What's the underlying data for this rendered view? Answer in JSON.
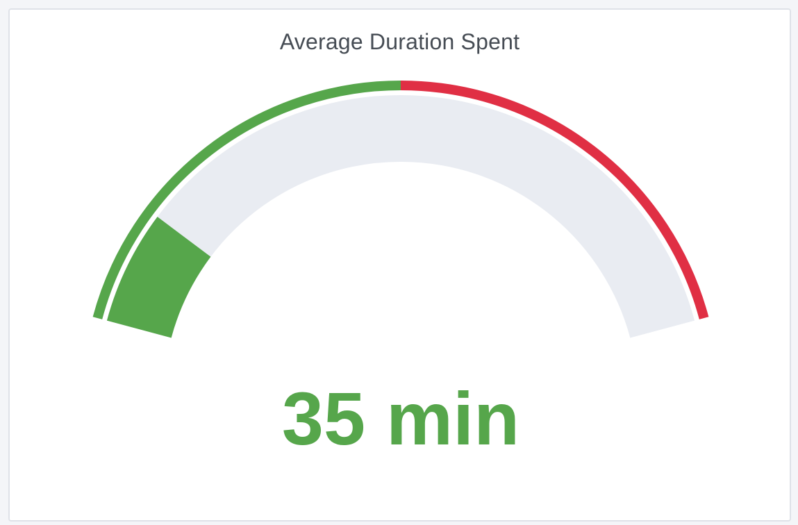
{
  "panel": {
    "title": "Average Duration Spent"
  },
  "chart_data": {
    "type": "gauge",
    "title": "Average Duration Spent",
    "value": 35,
    "unit": "min",
    "display": "35 min",
    "min": 0,
    "max": 240,
    "thresholds": [
      {
        "from": 0,
        "to": 120,
        "color": "#56a64b"
      },
      {
        "from": 120,
        "to": 240,
        "color": "#e02f44"
      }
    ],
    "value_color": "#56a64b",
    "track_color": "#e9ecf2"
  }
}
